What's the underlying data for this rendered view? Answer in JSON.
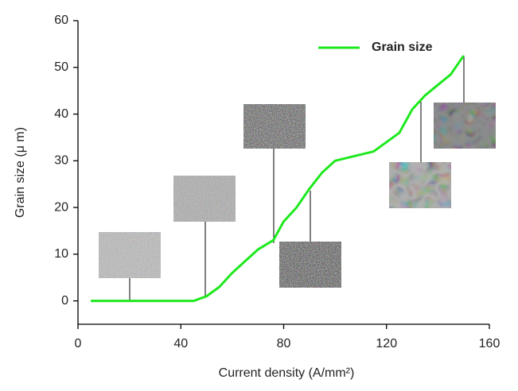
{
  "chart_data": {
    "type": "line",
    "x_label": "Current density (A/mm²)",
    "y_label": "Grain size (μ m)",
    "x": [
      5,
      45,
      50,
      55,
      60,
      65,
      70,
      76,
      80,
      85,
      90,
      95,
      100,
      115,
      125,
      130,
      135,
      145,
      150
    ],
    "series": [
      {
        "name": "Grain size",
        "color": "#1ee81e",
        "values": [
          0,
          0,
          1,
          3,
          6,
          8.5,
          11,
          13,
          17,
          20,
          24,
          27.5,
          30,
          32,
          36,
          41,
          44,
          48.5,
          52.5
        ]
      }
    ],
    "xlim": [
      0,
      160
    ],
    "xticks": [
      0,
      40,
      80,
      120,
      160
    ],
    "ylim": [
      -5,
      60
    ],
    "yticks": [
      0,
      10,
      20,
      30,
      40,
      50,
      60
    ],
    "legend": "upper right"
  }
}
